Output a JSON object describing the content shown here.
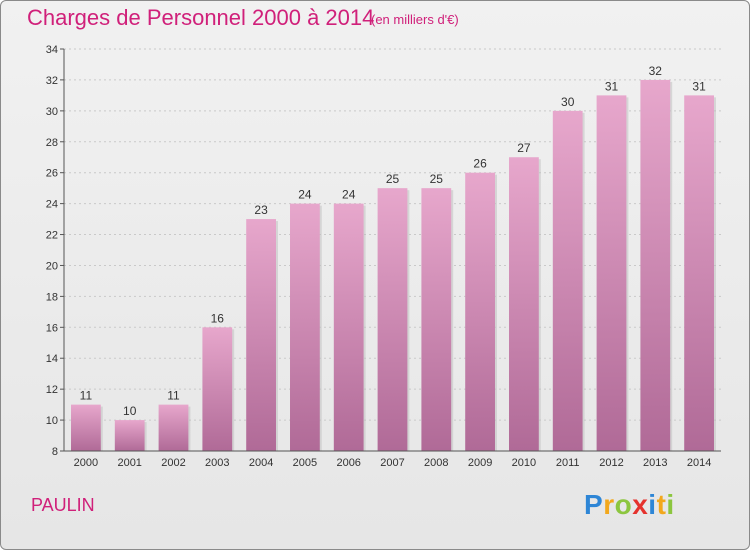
{
  "header": {
    "title": "Charges de Personnel 2000 à 2014",
    "subtitle": "(en milliers d'€)"
  },
  "footer": {
    "commune": "PAULIN",
    "logo_text": "Proxiti",
    "logo_letters": [
      {
        "char": "P",
        "color": "#2e86d6"
      },
      {
        "char": "r",
        "color": "#f2a81d"
      },
      {
        "char": "o",
        "color": "#8cc63f"
      },
      {
        "char": "x",
        "color": "#e5322d"
      },
      {
        "char": "i",
        "color": "#2e86d6"
      },
      {
        "char": "t",
        "color": "#f2a81d"
      },
      {
        "char": "i",
        "color": "#8cc63f"
      }
    ]
  },
  "colors": {
    "accent": "#d0207a",
    "bar_top": "#e7a7cc",
    "bar_bottom": "#b06a97",
    "grid": "#c9c9c9",
    "axis": "#555555"
  },
  "chart_data": {
    "type": "bar",
    "categories": [
      "2000",
      "2001",
      "2002",
      "2003",
      "2004",
      "2005",
      "2006",
      "2007",
      "2008",
      "2009",
      "2010",
      "2011",
      "2012",
      "2013",
      "2014"
    ],
    "values": [
      11,
      10,
      11,
      16,
      23,
      24,
      24,
      25,
      25,
      26,
      27,
      30,
      31,
      32,
      31
    ],
    "data_labels": [
      "11",
      "10",
      "11",
      "16",
      "23",
      "24",
      "24",
      "25",
      "25",
      "26",
      "27",
      "30",
      "31",
      "32",
      "31"
    ],
    "yticks": [
      8,
      10,
      12,
      14,
      16,
      18,
      20,
      22,
      24,
      26,
      28,
      30,
      32,
      34
    ],
    "ylim": [
      8,
      34
    ],
    "title": "Charges de Personnel 2000 à 2014",
    "xlabel": "",
    "ylabel": "",
    "grid": true,
    "legend": "none"
  }
}
